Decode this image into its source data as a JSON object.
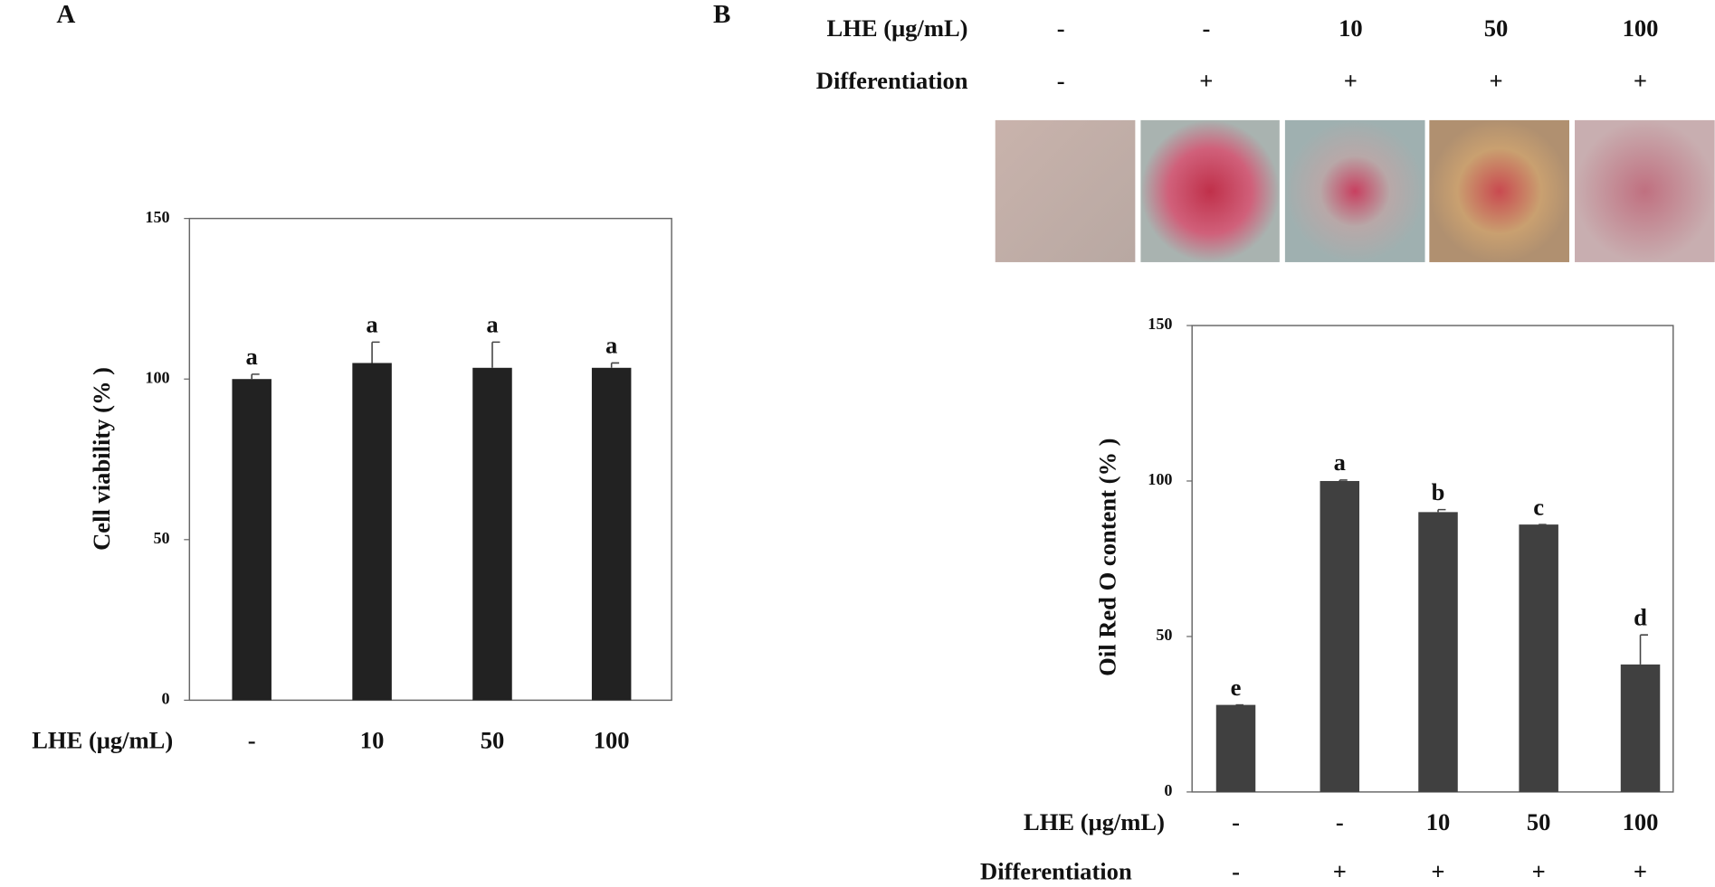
{
  "chart_data": [
    {
      "type": "bar",
      "panel": "A",
      "y_label": "Cell viability (% )",
      "category_label": "LHE (μg/mL)",
      "categories": [
        "-",
        "10",
        "50",
        "100"
      ],
      "values": [
        100,
        105,
        103.5,
        103.5
      ],
      "errors": [
        1.5,
        6.5,
        8,
        1.5
      ],
      "significance": [
        "a",
        "a",
        "a",
        "a"
      ],
      "color": "#222222",
      "ylim": [
        0,
        150
      ],
      "yticks": [
        0,
        50,
        100,
        150
      ]
    },
    {
      "type": "bar",
      "panel": "B",
      "y_label": "Oil Red O content (% )",
      "category_label": "LHE (μg/mL)",
      "categories": [
        "-",
        "-",
        "10",
        "50",
        "100"
      ],
      "differentiation_label": "Differentiation",
      "differentiation": [
        "-",
        "+",
        "+",
        "+",
        "+"
      ],
      "values": [
        28,
        100,
        90,
        86,
        41
      ],
      "errors": [
        0,
        0.3,
        0.8,
        0,
        9.5
      ],
      "significance": [
        "e",
        "a",
        "b",
        "c",
        "d"
      ],
      "color": "#404040",
      "ylim": [
        0,
        150
      ],
      "yticks": [
        0,
        50,
        100,
        150
      ]
    }
  ]
}
